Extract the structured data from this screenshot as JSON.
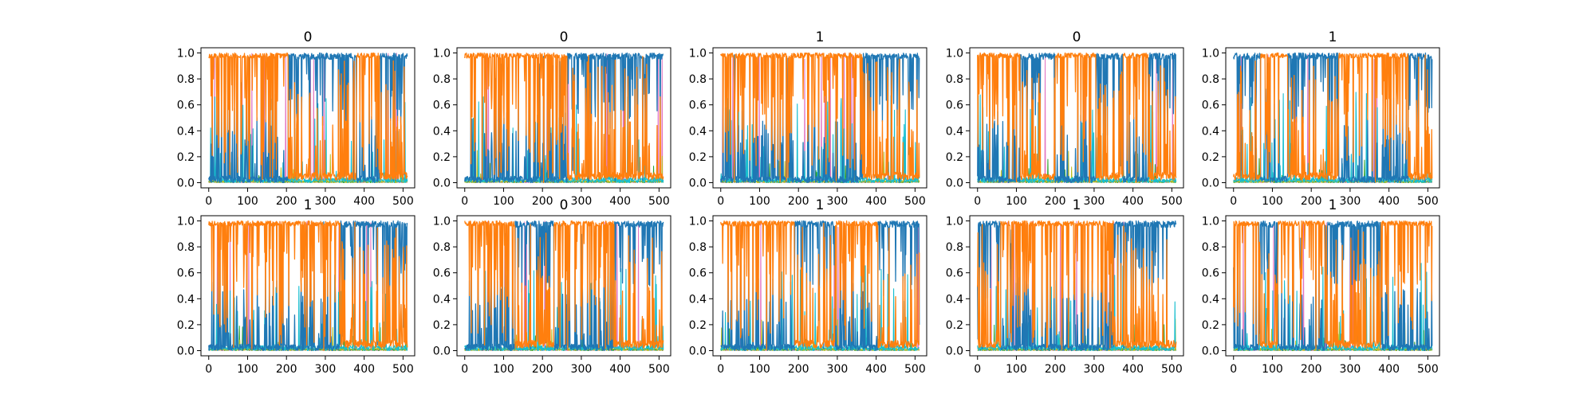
{
  "figure": {
    "background": "#ffffff"
  },
  "series_palette": {
    "blue": "#1f77b4",
    "orange": "#ff7f0e",
    "cyan": "#17becf",
    "olive": "#bcbd22",
    "green": "#2ca02c",
    "pink": "#e377c2"
  },
  "chart_data": [
    {
      "type": "line",
      "title": "0",
      "xticks": [
        0,
        100,
        200,
        300,
        400,
        500
      ],
      "yticks": [
        "0.0",
        "0.2",
        "0.4",
        "0.6",
        "0.8",
        "1.0"
      ],
      "xlim": [
        -20,
        530
      ],
      "ylim": [
        -0.04,
        1.04
      ],
      "x_points": 512,
      "grid": false,
      "dominant_segments": [
        {
          "from": 0,
          "to": 205,
          "series": "orange"
        },
        {
          "from": 205,
          "to": 380,
          "series": "blue"
        },
        {
          "from": 380,
          "to": 440,
          "series": "orange"
        },
        {
          "from": 440,
          "to": 512,
          "series": "blue"
        }
      ]
    },
    {
      "type": "line",
      "title": "0",
      "xticks": [
        0,
        100,
        200,
        300,
        400,
        500
      ],
      "yticks": [
        "0.0",
        "0.2",
        "0.4",
        "0.6",
        "0.8",
        "1.0"
      ],
      "xlim": [
        -20,
        530
      ],
      "ylim": [
        -0.04,
        1.04
      ],
      "x_points": 512,
      "grid": false,
      "dominant_segments": [
        {
          "from": 0,
          "to": 265,
          "series": "orange"
        },
        {
          "from": 265,
          "to": 512,
          "series": "blue"
        }
      ]
    },
    {
      "type": "line",
      "title": "1",
      "xticks": [
        0,
        100,
        200,
        300,
        400,
        500
      ],
      "yticks": [
        "0.0",
        "0.2",
        "0.4",
        "0.6",
        "0.8",
        "1.0"
      ],
      "xlim": [
        -20,
        530
      ],
      "ylim": [
        -0.04,
        1.04
      ],
      "x_points": 512,
      "grid": false,
      "dominant_segments": [
        {
          "from": 0,
          "to": 365,
          "series": "orange"
        },
        {
          "from": 365,
          "to": 512,
          "series": "blue"
        }
      ]
    },
    {
      "type": "line",
      "title": "0",
      "xticks": [
        0,
        100,
        200,
        300,
        400,
        500
      ],
      "yticks": [
        "0.0",
        "0.2",
        "0.4",
        "0.6",
        "0.8",
        "1.0"
      ],
      "xlim": [
        -20,
        530
      ],
      "ylim": [
        -0.04,
        1.04
      ],
      "x_points": 512,
      "grid": false,
      "dominant_segments": [
        {
          "from": 0,
          "to": 110,
          "series": "orange"
        },
        {
          "from": 110,
          "to": 200,
          "series": "blue"
        },
        {
          "from": 200,
          "to": 305,
          "series": "orange"
        },
        {
          "from": 305,
          "to": 375,
          "series": "blue"
        },
        {
          "from": 375,
          "to": 440,
          "series": "orange"
        },
        {
          "from": 440,
          "to": 512,
          "series": "blue"
        }
      ]
    },
    {
      "type": "line",
      "title": "1",
      "xticks": [
        0,
        100,
        200,
        300,
        400,
        500
      ],
      "yticks": [
        "0.0",
        "0.2",
        "0.4",
        "0.6",
        "0.8",
        "1.0"
      ],
      "xlim": [
        -20,
        530
      ],
      "ylim": [
        -0.04,
        1.04
      ],
      "x_points": 512,
      "grid": false,
      "dominant_segments": [
        {
          "from": 0,
          "to": 70,
          "series": "blue"
        },
        {
          "from": 70,
          "to": 140,
          "series": "orange"
        },
        {
          "from": 140,
          "to": 270,
          "series": "blue"
        },
        {
          "from": 270,
          "to": 450,
          "series": "orange"
        },
        {
          "from": 450,
          "to": 512,
          "series": "blue"
        }
      ]
    },
    {
      "type": "line",
      "title": "1",
      "xticks": [
        0,
        100,
        200,
        300,
        400,
        500
      ],
      "yticks": [
        "0.0",
        "0.2",
        "0.4",
        "0.6",
        "0.8",
        "1.0"
      ],
      "xlim": [
        -20,
        530
      ],
      "ylim": [
        -0.04,
        1.04
      ],
      "x_points": 512,
      "grid": false,
      "dominant_segments": [
        {
          "from": 0,
          "to": 340,
          "series": "orange"
        },
        {
          "from": 340,
          "to": 512,
          "series": "blue"
        }
      ]
    },
    {
      "type": "line",
      "title": "0",
      "xticks": [
        0,
        100,
        200,
        300,
        400,
        500
      ],
      "yticks": [
        "0.0",
        "0.2",
        "0.4",
        "0.6",
        "0.8",
        "1.0"
      ],
      "xlim": [
        -20,
        530
      ],
      "ylim": [
        -0.04,
        1.04
      ],
      "x_points": 512,
      "grid": false,
      "dominant_segments": [
        {
          "from": 0,
          "to": 130,
          "series": "orange"
        },
        {
          "from": 130,
          "to": 230,
          "series": "blue"
        },
        {
          "from": 230,
          "to": 385,
          "series": "orange"
        },
        {
          "from": 385,
          "to": 512,
          "series": "blue"
        }
      ]
    },
    {
      "type": "line",
      "title": "1",
      "xticks": [
        0,
        100,
        200,
        300,
        400,
        500
      ],
      "yticks": [
        "0.0",
        "0.2",
        "0.4",
        "0.6",
        "0.8",
        "1.0"
      ],
      "xlim": [
        -20,
        530
      ],
      "ylim": [
        -0.04,
        1.04
      ],
      "x_points": 512,
      "grid": false,
      "dominant_segments": [
        {
          "from": 0,
          "to": 190,
          "series": "orange"
        },
        {
          "from": 190,
          "to": 295,
          "series": "blue"
        },
        {
          "from": 295,
          "to": 405,
          "series": "orange"
        },
        {
          "from": 405,
          "to": 512,
          "series": "blue"
        }
      ]
    },
    {
      "type": "line",
      "title": "1",
      "xticks": [
        0,
        100,
        200,
        300,
        400,
        500
      ],
      "yticks": [
        "0.0",
        "0.2",
        "0.4",
        "0.6",
        "0.8",
        "1.0"
      ],
      "xlim": [
        -20,
        530
      ],
      "ylim": [
        -0.04,
        1.04
      ],
      "x_points": 512,
      "grid": false,
      "dominant_segments": [
        {
          "from": 0,
          "to": 60,
          "series": "blue"
        },
        {
          "from": 60,
          "to": 350,
          "series": "orange"
        },
        {
          "from": 350,
          "to": 512,
          "series": "blue"
        }
      ]
    },
    {
      "type": "line",
      "title": "1",
      "xticks": [
        0,
        100,
        200,
        300,
        400,
        500
      ],
      "yticks": [
        "0.0",
        "0.2",
        "0.4",
        "0.6",
        "0.8",
        "1.0"
      ],
      "xlim": [
        -20,
        530
      ],
      "ylim": [
        -0.04,
        1.04
      ],
      "x_points": 512,
      "grid": false,
      "dominant_segments": [
        {
          "from": 0,
          "to": 65,
          "series": "orange"
        },
        {
          "from": 65,
          "to": 115,
          "series": "blue"
        },
        {
          "from": 115,
          "to": 235,
          "series": "orange"
        },
        {
          "from": 235,
          "to": 380,
          "series": "blue"
        },
        {
          "from": 380,
          "to": 512,
          "series": "orange"
        }
      ]
    }
  ]
}
